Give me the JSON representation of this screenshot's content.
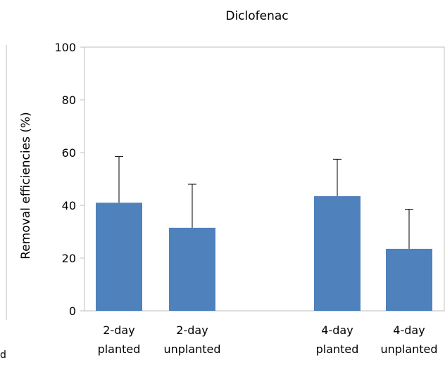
{
  "chart_data": {
    "type": "bar",
    "title": "Diclofenac",
    "ylabel": "Removal efficiencies (%)",
    "xlabel": "",
    "ylim": [
      0,
      100
    ],
    "yticks": [
      0,
      20,
      40,
      60,
      80,
      100
    ],
    "grid": false,
    "categories": [
      {
        "line1": "2-day",
        "line2": "planted"
      },
      {
        "line1": "2-day",
        "line2": "unplanted"
      },
      {
        "line1": "4-day",
        "line2": "planted"
      },
      {
        "line1": "4-day",
        "line2": "unplanted"
      }
    ],
    "series": [
      {
        "values": [
          41,
          31.5,
          43.5,
          23.5
        ],
        "error_upper": [
          58.5,
          48,
          57.5,
          38.5
        ],
        "color": "#4f81bd"
      }
    ]
  },
  "fragments": {
    "left_edge_text": "d"
  }
}
